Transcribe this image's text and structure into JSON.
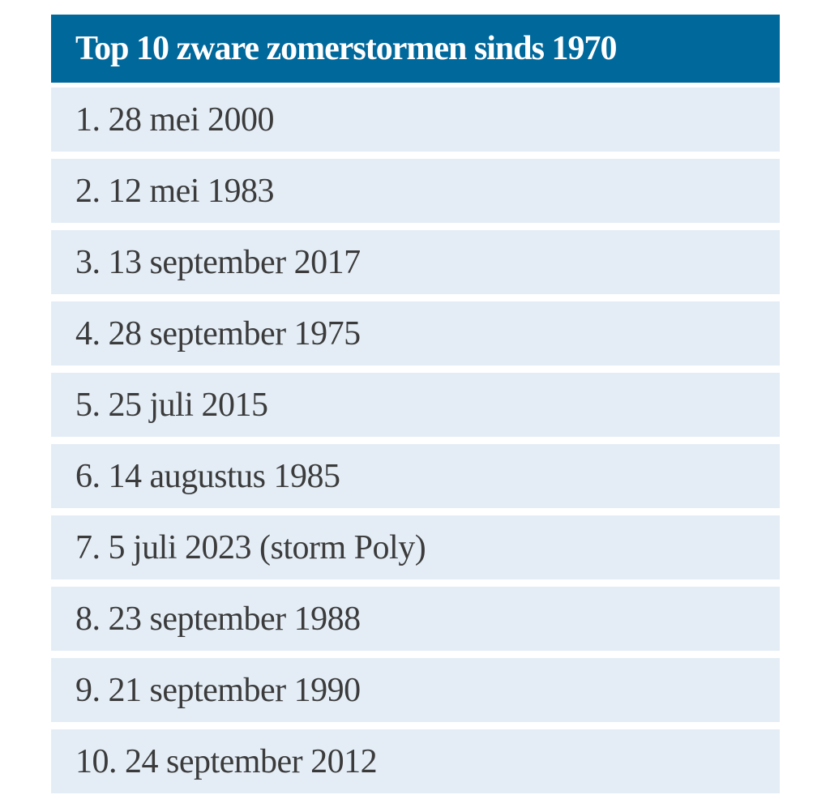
{
  "chart_data": {
    "type": "table",
    "title": "Top 10 zware zomerstormen sinds 1970",
    "rows": [
      "1. 28 mei 2000",
      "2. 12 mei 1983",
      "3. 13 september 2017",
      "4. 28 september 1975",
      "5. 25 juli 2015",
      "6. 14 augustus 1985",
      "7. 5 juli 2023 (storm Poly)",
      "8. 23 september 1988",
      "9. 21 september 1990",
      "10. 24 september 2012"
    ],
    "legend_position": "none",
    "grid": "off"
  },
  "colors": {
    "header_background": "#01689B",
    "header_text": "#FFFFFF",
    "row_background": "#E4EDF6",
    "row_text": "#3B3B3B",
    "gap_background": "#FFFFFF"
  }
}
